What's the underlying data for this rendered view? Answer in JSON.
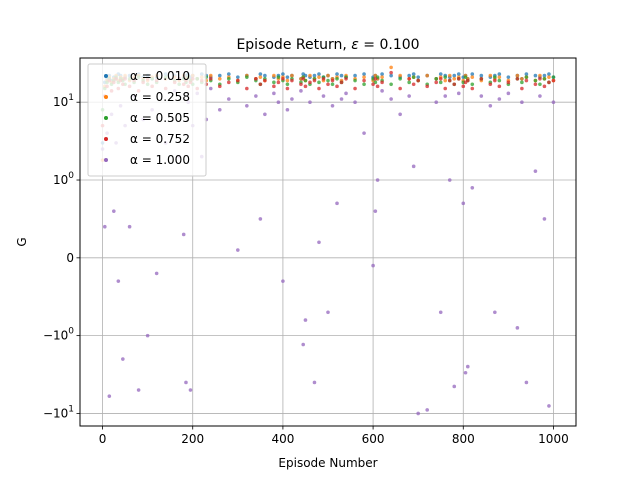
{
  "chart_data": {
    "type": "scatter",
    "title_prefix": "Episode Return, ",
    "title_symbol": "ε",
    "title_suffix": " = 0.100",
    "xlabel": "Episode Number",
    "ylabel": "G",
    "xlim": [
      -50,
      1050
    ],
    "ylim": [
      -14.5,
      37
    ],
    "yscale": "symlog",
    "linthresh": 1,
    "grid": true,
    "legend_position": "upper-left",
    "x_ticks": [
      {
        "value": 0,
        "label": "0"
      },
      {
        "value": 200,
        "label": "200"
      },
      {
        "value": 400,
        "label": "400"
      },
      {
        "value": 600,
        "label": "600"
      },
      {
        "value": 800,
        "label": "800"
      },
      {
        "value": 1000,
        "label": "1000"
      }
    ],
    "y_ticks": [
      {
        "value": -10,
        "base": "−10",
        "exp": "1"
      },
      {
        "value": -1,
        "base": "−10",
        "exp": "0"
      },
      {
        "value": 0,
        "base": "0",
        "exp": ""
      },
      {
        "value": 1,
        "base": "10",
        "exp": "0"
      },
      {
        "value": 10,
        "base": "10",
        "exp": "1"
      }
    ],
    "series": [
      {
        "name": "α = 0.010",
        "color": "#1f77b4"
      },
      {
        "name": "α = 0.258",
        "color": "#ff7f0e"
      },
      {
        "name": "α = 0.505",
        "color": "#2ca02c"
      },
      {
        "name": "α = 0.752",
        "color": "#d62728"
      },
      {
        "name": "α = 1.000",
        "color": "#9467bd"
      }
    ],
    "x": [
      0,
      5,
      10,
      15,
      20,
      25,
      30,
      35,
      40,
      45,
      50,
      60,
      70,
      80,
      90,
      100,
      110,
      120,
      140,
      160,
      170,
      180,
      185,
      190,
      195,
      200,
      210,
      220,
      230,
      240,
      260,
      280,
      300,
      320,
      340,
      350,
      360,
      380,
      390,
      400,
      410,
      420,
      440,
      445,
      450,
      460,
      470,
      480,
      490,
      500,
      510,
      520,
      530,
      540,
      560,
      580,
      600,
      605,
      610,
      620,
      640,
      660,
      680,
      690,
      700,
      720,
      740,
      750,
      760,
      770,
      780,
      790,
      800,
      805,
      810,
      820,
      840,
      860,
      870,
      880,
      900,
      920,
      930,
      940,
      960,
      970,
      980,
      990,
      1000
    ],
    "series_values": {
      "α = 0.010": [
        3,
        18,
        20,
        22,
        19,
        21,
        20,
        23,
        22,
        20,
        21,
        22,
        20,
        23,
        21,
        22,
        20,
        21,
        23,
        22,
        20,
        21,
        22,
        23,
        21,
        22,
        20,
        23,
        22,
        21,
        22,
        23,
        21,
        22,
        20,
        23,
        22,
        21,
        22,
        23,
        21,
        22,
        20,
        23,
        22,
        21,
        22,
        23,
        21,
        22,
        20,
        23,
        22,
        21,
        22,
        23,
        21,
        22,
        20,
        23,
        22,
        21,
        22,
        23,
        21,
        22,
        20,
        23,
        22,
        21,
        22,
        23,
        21,
        22,
        20,
        23,
        22,
        21,
        22,
        23,
        21,
        22,
        20,
        23,
        22,
        21,
        22,
        23,
        21
      ],
      "α = 0.258": [
        1.8,
        16,
        19,
        21,
        18,
        20,
        22,
        19,
        21,
        20,
        22,
        19,
        21,
        22,
        20,
        19,
        21,
        22,
        20,
        21,
        19,
        22,
        20,
        21,
        19,
        22,
        20,
        21,
        19,
        22,
        20,
        21,
        19,
        22,
        20,
        21,
        19,
        22,
        20,
        21,
        19,
        22,
        20,
        21,
        19,
        22,
        20,
        21,
        19,
        22,
        20,
        21,
        19,
        22,
        20,
        21,
        19,
        22,
        20,
        21,
        28,
        22,
        20,
        21,
        19,
        22,
        20,
        21,
        19,
        22,
        20,
        21,
        19,
        22,
        20,
        21,
        19,
        22,
        20,
        21,
        19,
        22,
        20,
        21,
        19,
        22,
        20,
        21,
        19
      ],
      "α = 0.505": [
        8,
        15,
        18,
        20,
        17,
        19,
        21,
        18,
        20,
        19,
        17,
        20,
        18,
        21,
        19,
        17,
        20,
        18,
        21,
        19,
        17,
        20,
        18,
        21,
        19,
        17,
        20,
        18,
        21,
        19,
        17,
        20,
        18,
        21,
        19,
        17,
        20,
        18,
        21,
        19,
        17,
        20,
        18,
        21,
        19,
        17,
        20,
        18,
        21,
        19,
        17,
        20,
        18,
        21,
        19,
        17,
        20,
        18,
        21,
        19,
        17,
        20,
        18,
        21,
        19,
        17,
        20,
        18,
        21,
        19,
        17,
        20,
        18,
        21,
        19,
        17,
        20,
        18,
        21,
        19,
        17,
        20,
        18,
        21,
        19,
        17,
        20,
        18,
        21
      ],
      "α = 0.752": [
        5,
        12,
        16,
        19,
        14,
        18,
        20,
        15,
        19,
        17,
        20,
        16,
        19,
        14,
        18,
        20,
        16,
        19,
        15,
        18,
        20,
        17,
        19,
        16,
        18,
        20,
        15,
        19,
        17,
        20,
        16,
        18,
        19,
        15,
        20,
        17,
        19,
        16,
        18,
        20,
        15,
        19,
        17,
        20,
        16,
        18,
        19,
        15,
        20,
        17,
        19,
        16,
        18,
        20,
        15,
        19,
        17,
        20,
        16,
        18,
        24,
        15,
        20,
        17,
        19,
        16,
        18,
        20,
        15,
        19,
        17,
        20,
        16,
        18,
        19,
        15,
        20,
        17,
        19,
        16,
        18,
        20,
        15,
        19,
        17,
        20,
        16,
        18,
        19
      ],
      "α = 1.000": [
        2.5,
        0.4,
        4,
        -6,
        7,
        0.6,
        3,
        -0.3,
        9,
        -2,
        5,
        0.4,
        12,
        -5,
        6,
        -1,
        8,
        -0.2,
        3,
        14,
        2,
        0.3,
        -4,
        10,
        -5,
        5,
        13,
        2,
        6,
        15,
        8,
        11,
        0.1,
        9,
        12,
        0.5,
        7,
        13,
        10,
        -0.3,
        8,
        11,
        14,
        -1.3,
        -0.8,
        10,
        -4,
        0.2,
        12,
        -0.7,
        9,
        0.7,
        11,
        13,
        10,
        4,
        -0.1,
        0.6,
        1,
        14,
        11,
        7,
        12,
        1.5,
        -10,
        -9,
        10,
        -0.7,
        12,
        1,
        -4.5,
        13,
        0.7,
        -3,
        -2.5,
        0.9,
        12,
        9,
        -0.7,
        11,
        13,
        -0.9,
        10,
        -4,
        1.3,
        12,
        0.5,
        -8,
        10
      ]
    }
  }
}
